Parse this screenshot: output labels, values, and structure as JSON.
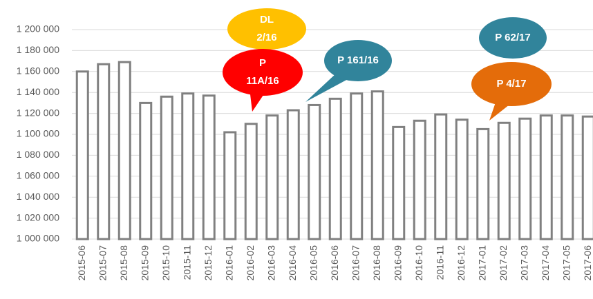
{
  "chart_data": {
    "type": "bar",
    "categories": [
      "2015-06",
      "2015-07",
      "2015-08",
      "2015-09",
      "2015-10",
      "2015-11",
      "2015-12",
      "2016-01",
      "2016-02",
      "2016-03",
      "2016-04",
      "2016-05",
      "2016-06",
      "2016-07",
      "2016-08",
      "2016-09",
      "2016-10",
      "2016-11",
      "2016-12",
      "2017-01",
      "2017-02",
      "2017-03",
      "2017-04",
      "2017-05",
      "2017-06"
    ],
    "values": [
      1160000,
      1167000,
      1169000,
      1130000,
      1136000,
      1139000,
      1137000,
      1102000,
      1110000,
      1118000,
      1123000,
      1128000,
      1134000,
      1139000,
      1141000,
      1107000,
      1113000,
      1119000,
      1114000,
      1105000,
      1111000,
      1115000,
      1118000,
      1118000,
      1117000
    ],
    "color": "#ffffff",
    "edge_color": "#808080",
    "ylim": [
      1000000,
      1200000
    ],
    "yticks": [
      {
        "value": 1000000,
        "label": "1 000 000"
      },
      {
        "value": 1020000,
        "label": "1 020 000"
      },
      {
        "value": 1040000,
        "label": "1 040 000"
      },
      {
        "value": 1060000,
        "label": "1 060 000"
      },
      {
        "value": 1080000,
        "label": "1 080 000"
      },
      {
        "value": 1100000,
        "label": "1 100 000"
      },
      {
        "value": 1120000,
        "label": "1 120 000"
      },
      {
        "value": 1140000,
        "label": "1 140 000"
      },
      {
        "value": 1160000,
        "label": "1 160 000"
      },
      {
        "value": 1180000,
        "label": "1 180 000"
      },
      {
        "value": 1200000,
        "label": "1 200 000"
      }
    ],
    "grid": true,
    "annotations": [
      {
        "lines": [
          "DL",
          "2/16"
        ],
        "color": "#ffc000"
      },
      {
        "lines": [
          "P",
          "11A/16"
        ],
        "color": "#ff0000"
      },
      {
        "lines": [
          "P 161/16"
        ],
        "color": "#31849b"
      },
      {
        "lines": [
          "P 62/17"
        ],
        "color": "#31849b"
      },
      {
        "lines": [
          "P 4/17"
        ],
        "color": "#e46c0a"
      }
    ]
  }
}
